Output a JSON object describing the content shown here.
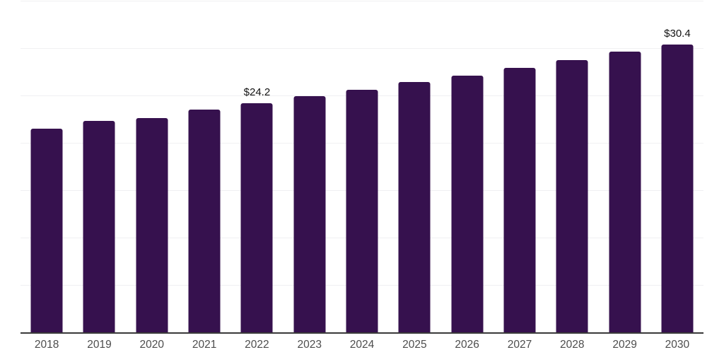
{
  "colors": {
    "background": "#FFFFFF",
    "bar": "#36114E",
    "gridline": "#F0F0F2",
    "axis_line": "#3A3A3A",
    "tick_label": "#4D4D4D",
    "value_label": "#121212"
  },
  "chart_data": {
    "type": "bar",
    "title": "",
    "xlabel": "",
    "ylabel": "",
    "categories": [
      "2018",
      "2019",
      "2020",
      "2021",
      "2022",
      "2023",
      "2024",
      "2025",
      "2026",
      "2027",
      "2028",
      "2029",
      "2030"
    ],
    "values": [
      21.5,
      22.3,
      22.6,
      23.5,
      24.2,
      24.9,
      25.6,
      26.4,
      27.1,
      27.9,
      28.7,
      29.6,
      30.4
    ],
    "value_labels": [
      "",
      "",
      "",
      "",
      "$24.2",
      "",
      "",
      "",
      "",
      "",
      "",
      "",
      "$30.4"
    ],
    "ylim": [
      0,
      35
    ],
    "grid": true,
    "grid_interval": 5,
    "y_axis_labels_visible": false,
    "legend": false
  }
}
